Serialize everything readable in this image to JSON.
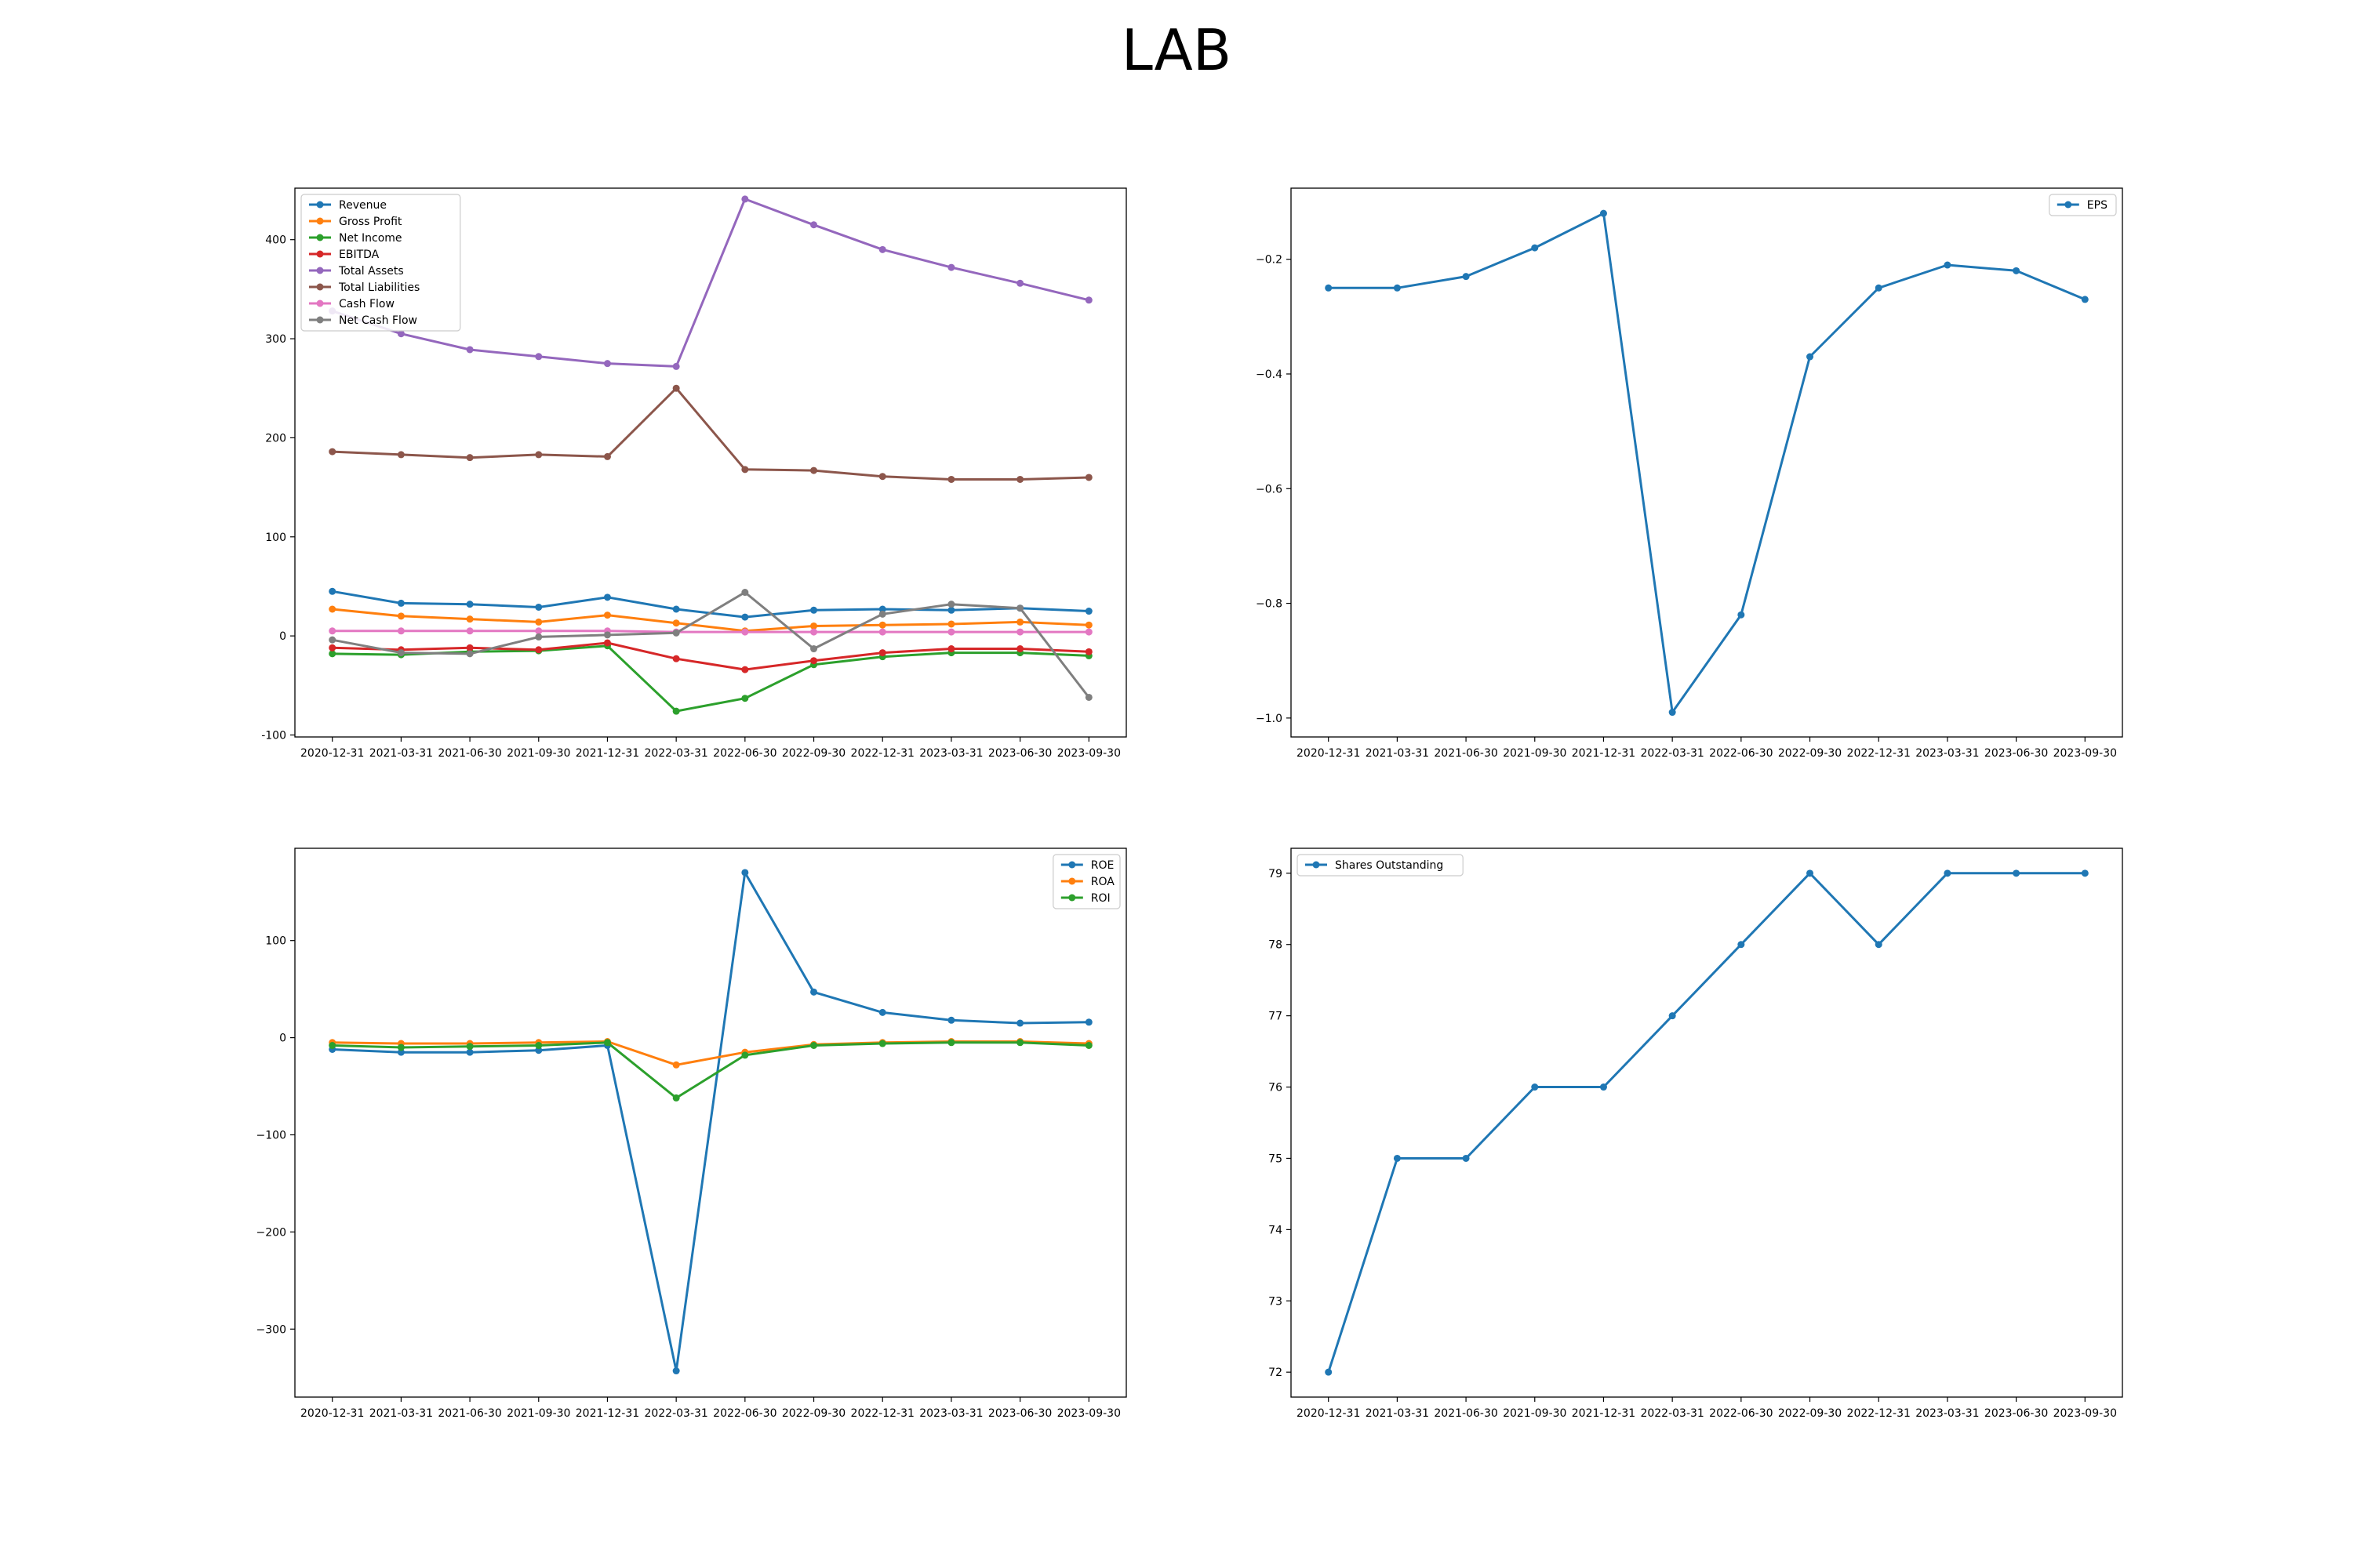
{
  "figure": {
    "title": "LAB"
  },
  "chart_data": [
    {
      "type": "line",
      "legend_position": "upper-left",
      "categories": [
        "2020-12-31",
        "2021-03-31",
        "2021-06-30",
        "2021-09-30",
        "2021-12-31",
        "2022-03-31",
        "2022-06-30",
        "2022-09-30",
        "2022-12-31",
        "2023-03-31",
        "2023-06-30",
        "2023-09-30"
      ],
      "ylim": [
        -102,
        452
      ],
      "yticks": [
        -100,
        0,
        100,
        200,
        300,
        400
      ],
      "series": [
        {
          "name": "Revenue",
          "color": "#1f77b4",
          "values": [
            45,
            33,
            32,
            29,
            39,
            27,
            19,
            26,
            27,
            26,
            28,
            25
          ]
        },
        {
          "name": "Gross Profit",
          "color": "#ff7f0e",
          "values": [
            27,
            20,
            17,
            14,
            21,
            13,
            5,
            10,
            11,
            12,
            14,
            11
          ]
        },
        {
          "name": "Net Income",
          "color": "#2ca02c",
          "values": [
            -18,
            -19,
            -16,
            -15,
            -10,
            -76,
            -63,
            -29,
            -21,
            -17,
            -17,
            -20
          ]
        },
        {
          "name": "EBITDA",
          "color": "#d62728",
          "values": [
            -12,
            -14,
            -12,
            -14,
            -7,
            -23,
            -34,
            -25,
            -17,
            -13,
            -13,
            -16
          ]
        },
        {
          "name": "Total Assets",
          "color": "#9467bd",
          "values": [
            328,
            305,
            289,
            282,
            275,
            272,
            441,
            415,
            390,
            372,
            356,
            339
          ]
        },
        {
          "name": "Total Liabilities",
          "color": "#8c564b",
          "values": [
            186,
            183,
            180,
            183,
            181,
            250,
            168,
            167,
            161,
            158,
            158,
            160
          ]
        },
        {
          "name": "Cash Flow",
          "color": "#e377c2",
          "values": [
            5,
            5,
            5,
            5,
            5,
            4,
            4,
            4,
            4,
            4,
            4,
            4
          ]
        },
        {
          "name": "Net Cash Flow",
          "color": "#7f7f7f",
          "values": [
            -4,
            -17,
            -18,
            -1,
            1,
            3,
            44,
            -13,
            22,
            32,
            28,
            -62
          ]
        }
      ]
    },
    {
      "type": "line",
      "legend_position": "upper-right",
      "categories": [
        "2020-12-31",
        "2021-03-31",
        "2021-06-30",
        "2021-09-30",
        "2021-12-31",
        "2022-03-31",
        "2022-06-30",
        "2022-09-30",
        "2022-12-31",
        "2023-03-31",
        "2023-06-30",
        "2023-09-30"
      ],
      "ylim": [
        -1.033,
        -0.076
      ],
      "yticks": [
        -1.0,
        -0.8,
        -0.6,
        -0.4,
        -0.2
      ],
      "ytick_labels": [
        "−1.0",
        "−0.8",
        "−0.6",
        "−0.4",
        "−0.2"
      ],
      "series": [
        {
          "name": "EPS",
          "color": "#1f77b4",
          "values": [
            -0.25,
            -0.25,
            -0.23,
            -0.18,
            -0.12,
            -0.99,
            -0.82,
            -0.37,
            -0.25,
            -0.21,
            -0.22,
            -0.27
          ]
        }
      ]
    },
    {
      "type": "line",
      "legend_position": "upper-right",
      "categories": [
        "2020-12-31",
        "2021-03-31",
        "2021-06-30",
        "2021-09-30",
        "2021-12-31",
        "2022-03-31",
        "2022-06-30",
        "2022-09-30",
        "2022-12-31",
        "2023-03-31",
        "2023-06-30",
        "2023-09-30"
      ],
      "ylim": [
        -370,
        195
      ],
      "yticks": [
        -300,
        -200,
        -100,
        0,
        100
      ],
      "ytick_labels": [
        "−300",
        "−200",
        "−100",
        "0",
        "100"
      ],
      "series": [
        {
          "name": "ROE",
          "color": "#1f77b4",
          "values": [
            -12,
            -15,
            -15,
            -13,
            -8,
            -343,
            170,
            47,
            26,
            18,
            15,
            16
          ]
        },
        {
          "name": "ROA",
          "color": "#ff7f0e",
          "values": [
            -5,
            -6,
            -6,
            -5,
            -4,
            -28,
            -15,
            -7,
            -5,
            -4,
            -4,
            -6
          ]
        },
        {
          "name": "ROI",
          "color": "#2ca02c",
          "values": [
            -8,
            -10,
            -9,
            -8,
            -5,
            -62,
            -18,
            -8,
            -6,
            -5,
            -5,
            -8
          ]
        }
      ]
    },
    {
      "type": "line",
      "legend_position": "upper-left",
      "categories": [
        "2020-12-31",
        "2021-03-31",
        "2021-06-30",
        "2021-09-30",
        "2021-12-31",
        "2022-03-31",
        "2022-06-30",
        "2022-09-30",
        "2022-12-31",
        "2023-03-31",
        "2023-06-30",
        "2023-09-30"
      ],
      "ylim": [
        71.65,
        79.35
      ],
      "yticks": [
        72,
        73,
        74,
        75,
        76,
        77,
        78,
        79
      ],
      "series": [
        {
          "name": "Shares Outstanding",
          "color": "#1f77b4",
          "values": [
            72,
            75,
            75,
            76,
            76,
            77,
            78,
            79,
            78,
            79,
            79,
            79
          ]
        }
      ]
    }
  ]
}
